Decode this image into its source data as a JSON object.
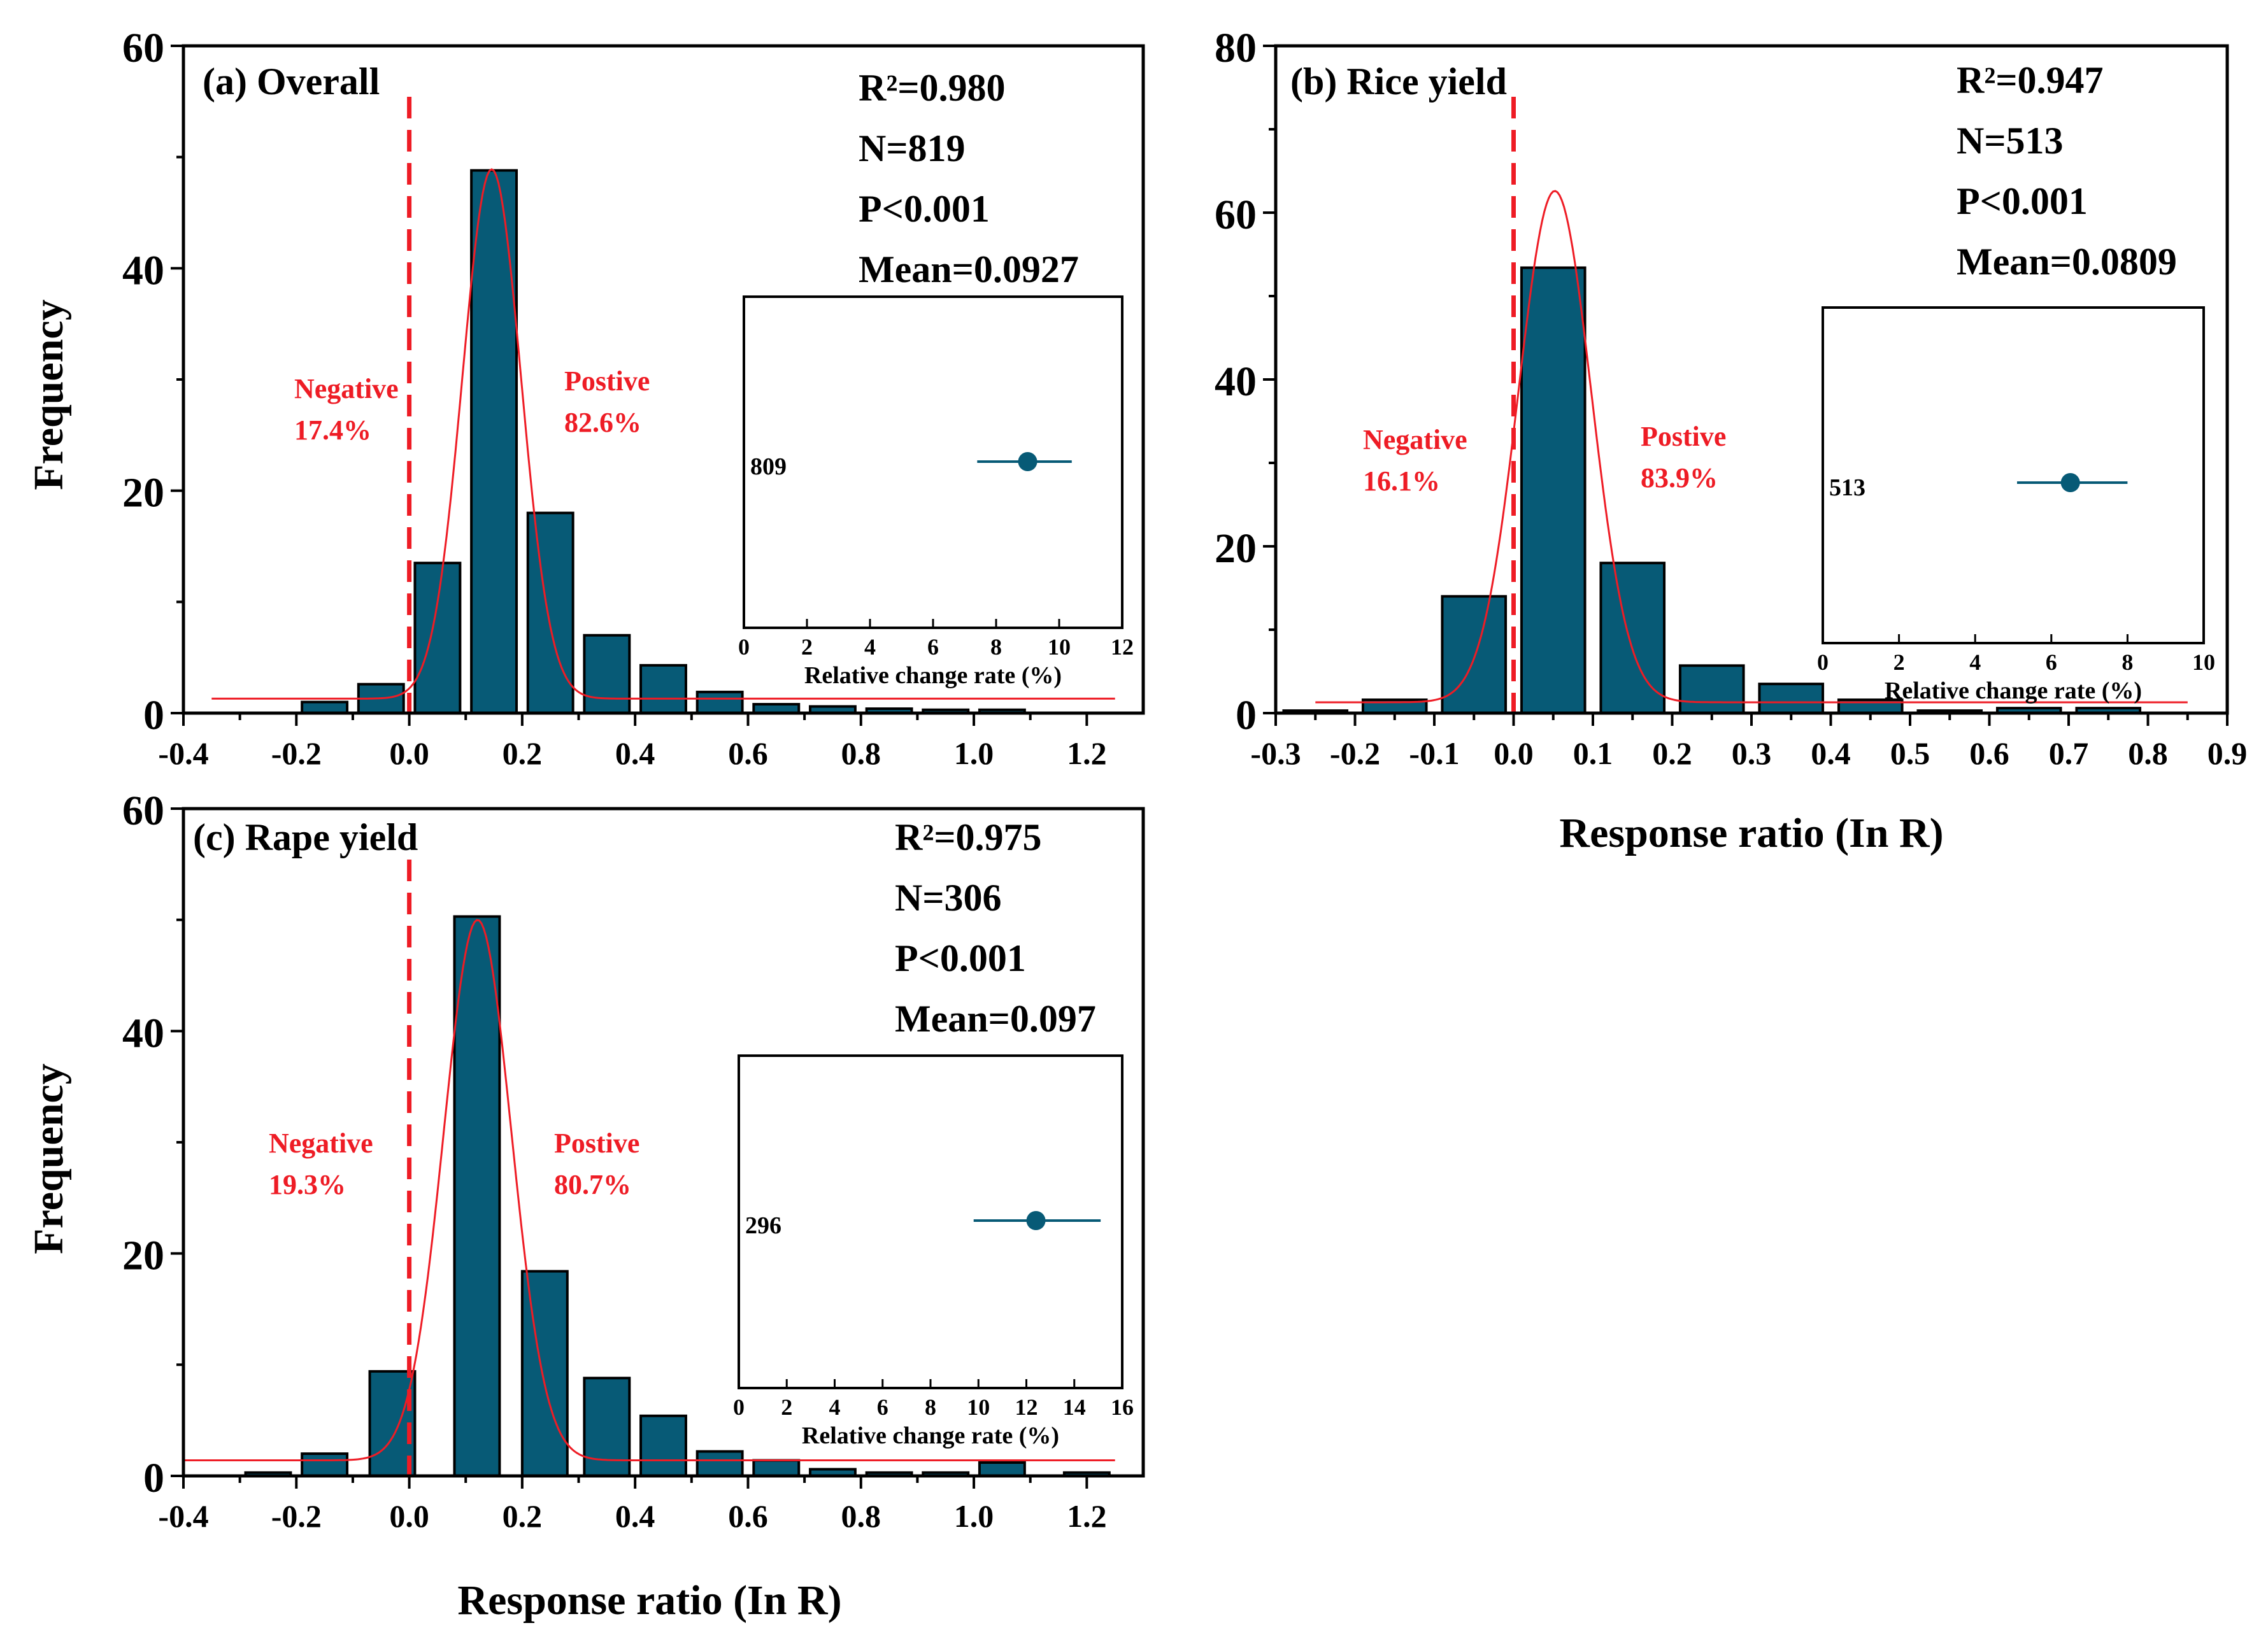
{
  "colors": {
    "bar": "#075a76",
    "fit": "#ee1c25",
    "zero_line": "#ee1c25",
    "text": "#000000",
    "annotation": "#ee1c25"
  },
  "chart_data": [
    {
      "id": "a",
      "type": "bar",
      "title": "(a) Overall",
      "xlabel": "",
      "ylabel": "Frequency",
      "xlim": [
        -0.4,
        1.3
      ],
      "ylim": [
        0,
        60
      ],
      "xticks": [
        -0.4,
        -0.2,
        0.0,
        0.2,
        0.4,
        0.6,
        0.8,
        1.0,
        1.2
      ],
      "xtick_labels": [
        "-0.4",
        "-0.2",
        "0.0",
        "0.2",
        "0.4",
        "0.6",
        "0.8",
        "1.0",
        "1.2"
      ],
      "yticks": [
        0,
        20,
        40,
        60
      ],
      "ytick_labels": [
        "0",
        "20",
        "40",
        "60"
      ],
      "bar_width": 0.08,
      "bars": [
        {
          "x": -0.15,
          "y": 1
        },
        {
          "x": -0.05,
          "y": 2.6
        },
        {
          "x": 0.05,
          "y": 13.5
        },
        {
          "x": 0.15,
          "y": 48.8
        },
        {
          "x": 0.25,
          "y": 18
        },
        {
          "x": 0.35,
          "y": 7
        },
        {
          "x": 0.45,
          "y": 4.3
        },
        {
          "x": 0.55,
          "y": 1.9
        },
        {
          "x": 0.65,
          "y": 0.8
        },
        {
          "x": 0.75,
          "y": 0.6
        },
        {
          "x": 0.85,
          "y": 0.4
        },
        {
          "x": 0.95,
          "y": 0.3
        },
        {
          "x": 1.05,
          "y": 0.3
        }
      ],
      "fit": {
        "type": "gaussian",
        "y0": 1.3,
        "amplitude": 47.6,
        "center": 0.146,
        "sigma": 0.052,
        "x_from": -0.35,
        "x_to": 1.25
      },
      "zero_line_x": 0,
      "stats": [
        "R²=0.980",
        "N=819",
        "P<0.001",
        "Mean=0.0927"
      ],
      "negative": {
        "label": "Negative",
        "pct": "17.4%"
      },
      "positive": {
        "label": "Postive",
        "pct": "82.6%"
      },
      "inset": {
        "xlabel": "Relative change rate (%)",
        "xlim": [
          0,
          12
        ],
        "xticks": [
          0,
          2,
          4,
          6,
          8,
          10,
          12
        ],
        "xtick_labels": [
          "0",
          "2",
          "4",
          "6",
          "8",
          "10",
          "12"
        ],
        "n": "809",
        "mean": 9.0,
        "ci": [
          7.4,
          10.4
        ]
      }
    },
    {
      "id": "b",
      "type": "bar",
      "title": "(b) Rice yield",
      "xlabel": "Response ratio (In R)",
      "ylabel": "",
      "xlim": [
        -0.3,
        0.9
      ],
      "ylim": [
        0,
        80
      ],
      "xticks": [
        -0.3,
        -0.2,
        -0.1,
        0.0,
        0.1,
        0.2,
        0.3,
        0.4,
        0.5,
        0.6,
        0.7,
        0.8,
        0.9
      ],
      "xtick_labels": [
        "-0.3",
        "-0.2",
        "-0.1",
        "0.0",
        "0.1",
        "0.2",
        "0.3",
        "0.4",
        "0.5",
        "0.6",
        "0.7",
        "0.8",
        "0.9"
      ],
      "yticks": [
        0,
        20,
        40,
        60,
        80
      ],
      "ytick_labels": [
        "0",
        "20",
        "40",
        "60",
        "80"
      ],
      "bar_width": 0.08,
      "bars": [
        {
          "x": -0.25,
          "y": 0.3
        },
        {
          "x": -0.15,
          "y": 1.6
        },
        {
          "x": -0.05,
          "y": 14
        },
        {
          "x": 0.05,
          "y": 53.4
        },
        {
          "x": 0.15,
          "y": 18
        },
        {
          "x": 0.25,
          "y": 5.7
        },
        {
          "x": 0.35,
          "y": 3.5
        },
        {
          "x": 0.45,
          "y": 1.6
        },
        {
          "x": 0.55,
          "y": 0.3
        },
        {
          "x": 0.65,
          "y": 0.6
        },
        {
          "x": 0.75,
          "y": 0.6
        }
      ],
      "fit": {
        "type": "gaussian",
        "y0": 1.3,
        "amplitude": 61.3,
        "center": 0.052,
        "sigma": 0.046,
        "x_from": -0.25,
        "x_to": 0.85
      },
      "zero_line_x": 0,
      "stats": [
        "R²=0.947",
        "N=513",
        "P<0.001",
        "Mean=0.0809"
      ],
      "negative": {
        "label": "Negative",
        "pct": "16.1%"
      },
      "positive": {
        "label": "Postive",
        "pct": "83.9%"
      },
      "inset": {
        "xlabel": "Relative change rate (%)",
        "xlim": [
          0,
          10
        ],
        "xticks": [
          0,
          2,
          4,
          6,
          8,
          10
        ],
        "xtick_labels": [
          "0",
          "2",
          "4",
          "6",
          "8",
          "10"
        ],
        "n": "513",
        "mean": 6.5,
        "ci": [
          5.1,
          8.0
        ]
      }
    },
    {
      "id": "c",
      "type": "bar",
      "title": "(c) Rape yield",
      "xlabel": "Response ratio (In R)",
      "ylabel": "Frequency",
      "xlim": [
        -0.4,
        1.3
      ],
      "ylim": [
        0,
        60
      ],
      "xticks": [
        -0.4,
        -0.2,
        0.0,
        0.2,
        0.4,
        0.6,
        0.8,
        1.0,
        1.2
      ],
      "xtick_labels": [
        "-0.4",
        "-0.2",
        "0.0",
        "0.2",
        "0.4",
        "0.6",
        "0.8",
        "1.0",
        "1.2"
      ],
      "yticks": [
        0,
        20,
        40,
        60
      ],
      "ytick_labels": [
        "0",
        "20",
        "40",
        "60"
      ],
      "bar_width": 0.08,
      "bars": [
        {
          "x": -0.25,
          "y": 0.3
        },
        {
          "x": -0.15,
          "y": 2
        },
        {
          "x": -0.03,
          "y": 9.4
        },
        {
          "x": 0.12,
          "y": 50.3
        },
        {
          "x": 0.24,
          "y": 18.4
        },
        {
          "x": 0.35,
          "y": 8.8
        },
        {
          "x": 0.45,
          "y": 5.4
        },
        {
          "x": 0.55,
          "y": 2.2
        },
        {
          "x": 0.65,
          "y": 1.4
        },
        {
          "x": 0.75,
          "y": 0.6
        },
        {
          "x": 0.85,
          "y": 0.3
        },
        {
          "x": 0.95,
          "y": 0.3
        },
        {
          "x": 1.05,
          "y": 1.2
        },
        {
          "x": 1.2,
          "y": 0.3
        }
      ],
      "fit": {
        "type": "gaussian",
        "y0": 1.4,
        "amplitude": 48.6,
        "center": 0.121,
        "sigma": 0.06,
        "x_from": -0.4,
        "x_to": 1.25
      },
      "zero_line_x": 0,
      "stats": [
        "R²=0.975",
        "N=306",
        "P<0.001",
        "Mean=0.097"
      ],
      "negative": {
        "label": "Negative",
        "pct": "19.3%"
      },
      "positive": {
        "label": "Postive",
        "pct": "80.7%"
      },
      "inset": {
        "xlabel": "Relative change rate (%)",
        "xlim": [
          0,
          16
        ],
        "xticks": [
          0,
          2,
          4,
          6,
          8,
          10,
          12,
          14,
          16
        ],
        "xtick_labels": [
          "0",
          "2",
          "4",
          "6",
          "8",
          "10",
          "12",
          "14",
          "16"
        ],
        "n": "296",
        "mean": 12.4,
        "ci": [
          9.8,
          15.1
        ]
      }
    }
  ]
}
